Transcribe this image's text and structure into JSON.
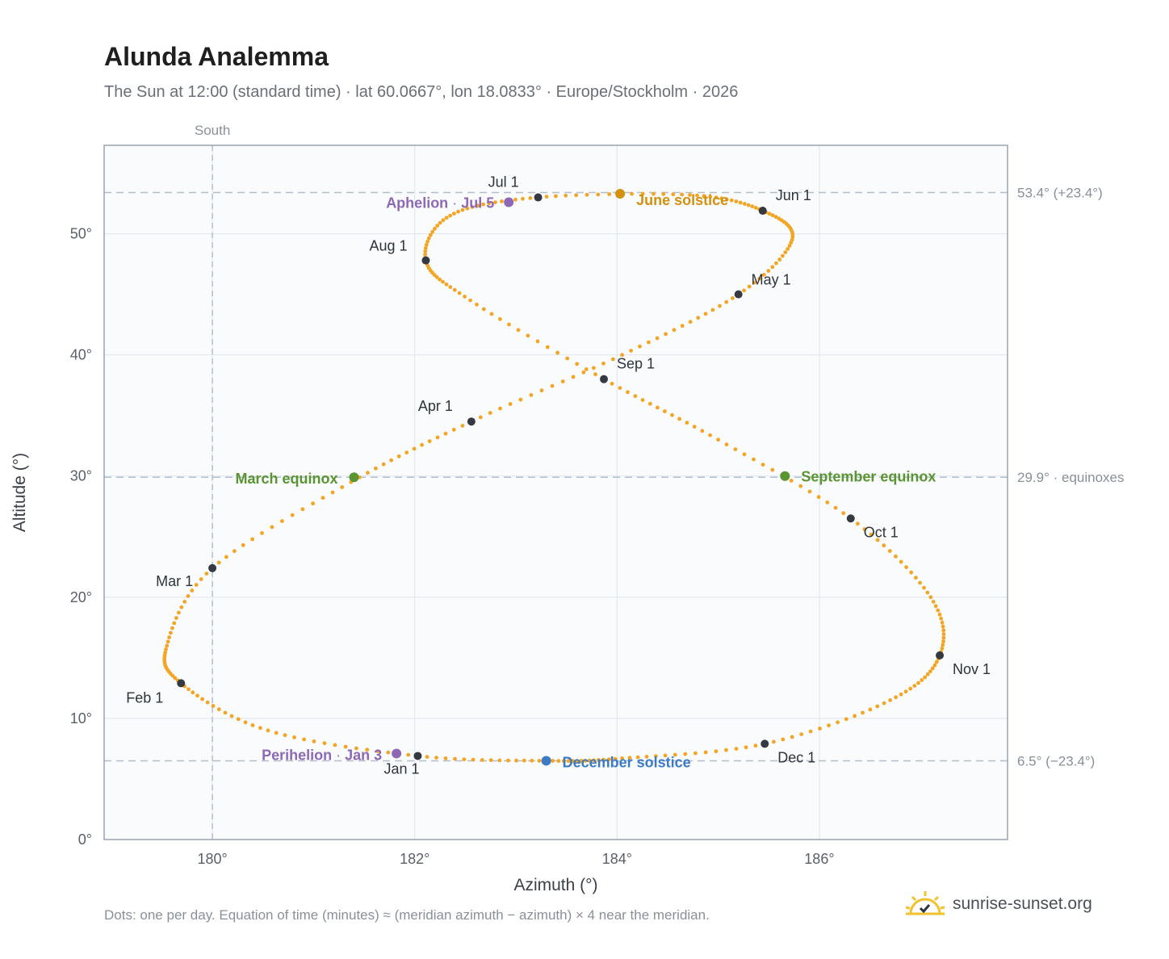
{
  "title": "Alunda Analemma",
  "subtitle": "The Sun at 12:00 (standard time) · lat 60.0667°, lon 18.0833° · Europe/Stockholm · 2026",
  "footnote": "Dots: one per day. Equation of time (minutes) ≈ (meridian azimuth − azimuth) × 4 near the meridian.",
  "brand": "sunrise-sunset.org",
  "chart_data": {
    "type": "scatter",
    "xlabel": "Azimuth (°)",
    "ylabel": "Altitude (°)",
    "xlim": [
      178.93,
      187.86
    ],
    "ylim": [
      0,
      57.3
    ],
    "xticks": [
      180,
      182,
      184,
      186
    ],
    "xtick_labels": [
      "180°",
      "182°",
      "184°",
      "186°"
    ],
    "yticks": [
      0,
      10,
      20,
      30,
      40,
      50
    ],
    "ytick_labels": [
      "0°",
      "10°",
      "20°",
      "30°",
      "40°",
      "50°"
    ],
    "grid": true,
    "meridian": {
      "azimuth": 180,
      "label": "South"
    },
    "reference_lines": [
      {
        "altitude": 53.4,
        "label": "53.4° (+23.4°)"
      },
      {
        "altitude": 29.9,
        "label": "29.9° · equinoxes"
      },
      {
        "altitude": 6.5,
        "label": "6.5° (−23.4°)"
      }
    ],
    "series": [
      {
        "color": "#f3a523",
        "x": [
          182.03,
          180.55,
          179.69,
          179.55,
          180.0,
          181.37,
          182.56,
          184.05,
          185.2,
          185.73,
          185.44,
          184.72,
          183.22,
          182.35,
          182.11,
          182.55,
          183.87,
          185.0,
          186.31,
          187.1,
          187.19,
          186.7,
          185.46,
          184.05,
          183.3,
          182.03
        ],
        "y": [
          6.9,
          9.0,
          12.9,
          16.0,
          22.4,
          29.5,
          34.5,
          40.0,
          45.0,
          49.5,
          51.9,
          53.2,
          53.0,
          51.5,
          47.8,
          44.5,
          38.0,
          33.0,
          26.5,
          20.0,
          15.2,
          11.5,
          7.9,
          6.7,
          6.5,
          6.9
        ]
      }
    ],
    "month_markers": [
      {
        "label": "Jan 1",
        "x": 182.03,
        "y": 6.9
      },
      {
        "label": "Feb 1",
        "x": 179.69,
        "y": 12.9
      },
      {
        "label": "Mar 1",
        "x": 180.0,
        "y": 22.4
      },
      {
        "label": "Apr 1",
        "x": 182.56,
        "y": 34.5
      },
      {
        "label": "May 1",
        "x": 185.2,
        "y": 45.0
      },
      {
        "label": "Jun 1",
        "x": 185.44,
        "y": 51.9
      },
      {
        "label": "Jul 1",
        "x": 183.22,
        "y": 53.0
      },
      {
        "label": "Aug 1",
        "x": 182.11,
        "y": 47.8
      },
      {
        "label": "Sep 1",
        "x": 183.87,
        "y": 38.0
      },
      {
        "label": "Oct 1",
        "x": 186.31,
        "y": 26.5
      },
      {
        "label": "Nov 1",
        "x": 187.19,
        "y": 15.2
      },
      {
        "label": "Dec 1",
        "x": 185.46,
        "y": 7.9
      }
    ],
    "events": [
      {
        "label": "June solstice",
        "x": 184.03,
        "y": 53.3,
        "color": "#d4900f"
      },
      {
        "label": "December solstice",
        "x": 183.3,
        "y": 6.5,
        "color": "#3d7ac4"
      },
      {
        "label": "March equinox",
        "x": 181.4,
        "y": 29.9,
        "color": "#5a9532"
      },
      {
        "label": "September equinox",
        "x": 185.66,
        "y": 30.0,
        "color": "#5a9532"
      },
      {
        "label": "Aphelion",
        "date": "Jul 5",
        "x": 182.93,
        "y": 52.6,
        "color": "#8e68b5"
      },
      {
        "label": "Perihelion",
        "date": "Jan 3",
        "x": 181.82,
        "y": 7.1,
        "color": "#8e68b5"
      }
    ]
  }
}
